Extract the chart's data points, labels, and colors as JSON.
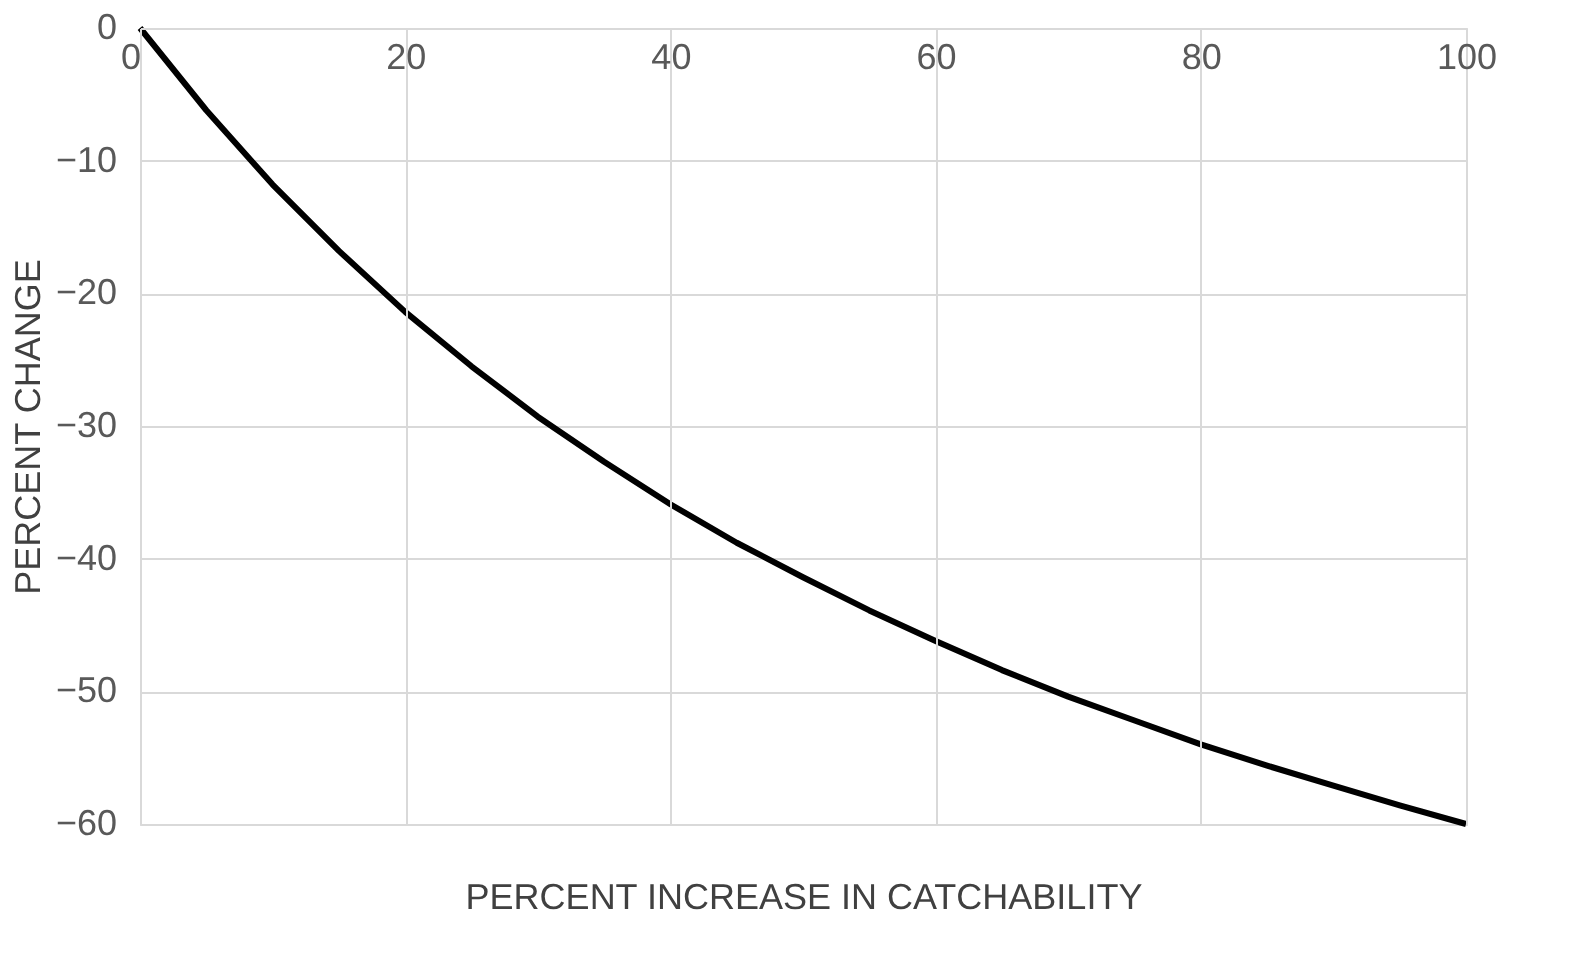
{
  "chart_data": {
    "type": "line",
    "xlabel": "PERCENT INCREASE IN CATCHABILITY",
    "ylabel": "PERCENT CHANGE",
    "x": [
      0,
      5,
      10,
      15,
      20,
      25,
      30,
      35,
      40,
      45,
      50,
      55,
      60,
      65,
      70,
      75,
      80,
      85,
      90,
      95,
      100
    ],
    "series": [
      {
        "color": "#000000",
        "values": [
          0,
          -6.2,
          -11.8,
          -16.8,
          -21.4,
          -25.5,
          -29.3,
          -32.7,
          -35.9,
          -38.8,
          -41.4,
          -43.9,
          -46.2,
          -48.4,
          -50.4,
          -52.2,
          -54.0,
          -55.6,
          -57.1,
          -58.6,
          -60.0
        ]
      }
    ],
    "xlim": [
      0,
      100
    ],
    "xticks": [
      0,
      20,
      40,
      60,
      80,
      100
    ],
    "ylim": [
      -60,
      0
    ],
    "yticks": [
      -60,
      -50,
      -40,
      -30,
      -20,
      -10,
      0
    ],
    "grid": true,
    "marker": "none",
    "line_style": "solid"
  }
}
